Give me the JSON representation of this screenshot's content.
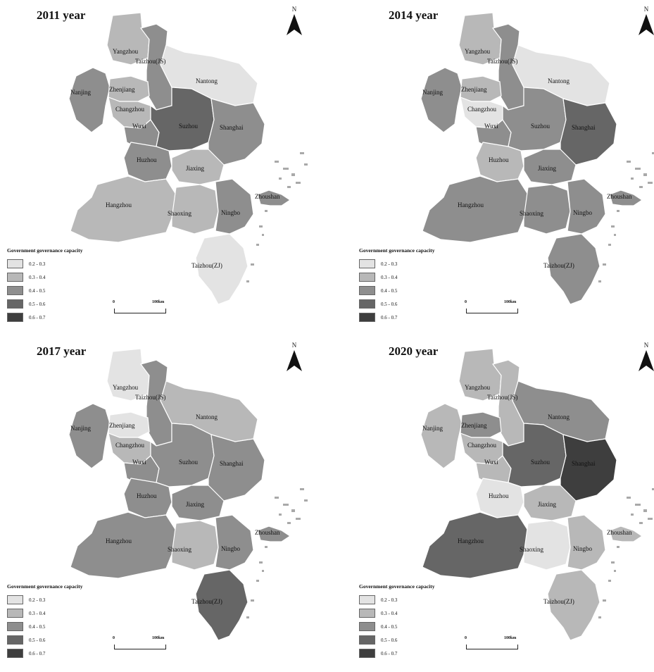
{
  "legend": {
    "title": "Government governance capacity",
    "classes": [
      {
        "label": "0.2 - 0.3",
        "color": "#e3e3e3"
      },
      {
        "label": "0.3 - 0.4",
        "color": "#b8b8b8"
      },
      {
        "label": "0.4 - 0.5",
        "color": "#8e8e8e"
      },
      {
        "label": "0.5 - 0.6",
        "color": "#666666"
      },
      {
        "label": "0.6 - 0.7",
        "color": "#3e3e3e"
      }
    ]
  },
  "north_label": "N",
  "scale": {
    "start": "0",
    "end": "100km"
  },
  "city_labels": {
    "yangzhou": "Yangzhou",
    "taizhou_js": "Taizhou(JS)",
    "nantong": "Nantong",
    "nanjing": "Nanjing",
    "zhenjiang": "Zhenjiang",
    "changzhou": "Changzhou",
    "wuxi": "Wuxi",
    "suzhou": "Suzhou",
    "shanghai": "Shanghai",
    "huzhou": "Huzhou",
    "jiaxing": "Jiaxing",
    "hangzhou": "Hangzhou",
    "shaoxing": "Shaoxing",
    "ningbo": "Ningbo",
    "zhoushan": "Zhoushan",
    "taizhou_zj": "Taizhou(ZJ)"
  },
  "maps": [
    {
      "year_title": "2011 year",
      "classes": {
        "yangzhou": "0.3 - 0.4",
        "taizhou_js": "0.4 - 0.5",
        "nantong": "0.2 - 0.3",
        "nanjing": "0.4 - 0.5",
        "zhenjiang": "0.3 - 0.4",
        "changzhou": "0.3 - 0.4",
        "wuxi": "0.4 - 0.5",
        "suzhou": "0.5 - 0.6",
        "shanghai": "0.4 - 0.5",
        "huzhou": "0.4 - 0.5",
        "jiaxing": "0.3 - 0.4",
        "hangzhou": "0.3 - 0.4",
        "shaoxing": "0.3 - 0.4",
        "ningbo": "0.4 - 0.5",
        "zhoushan": "0.4 - 0.5",
        "taizhou_zj": "0.2 - 0.3"
      }
    },
    {
      "year_title": "2014 year",
      "classes": {
        "yangzhou": "0.3 - 0.4",
        "taizhou_js": "0.4 - 0.5",
        "nantong": "0.2 - 0.3",
        "nanjing": "0.4 - 0.5",
        "zhenjiang": "0.3 - 0.4",
        "changzhou": "0.2 - 0.3",
        "wuxi": "0.4 - 0.5",
        "suzhou": "0.4 - 0.5",
        "shanghai": "0.5 - 0.6",
        "huzhou": "0.3 - 0.4",
        "jiaxing": "0.4 - 0.5",
        "hangzhou": "0.4 - 0.5",
        "shaoxing": "0.4 - 0.5",
        "ningbo": "0.4 - 0.5",
        "zhoushan": "0.4 - 0.5",
        "taizhou_zj": "0.4 - 0.5"
      }
    },
    {
      "year_title": "2017 year",
      "classes": {
        "yangzhou": "0.2 - 0.3",
        "taizhou_js": "0.4 - 0.5",
        "nantong": "0.3 - 0.4",
        "nanjing": "0.4 - 0.5",
        "zhenjiang": "0.2 - 0.3",
        "changzhou": "0.3 - 0.4",
        "wuxi": "0.4 - 0.5",
        "suzhou": "0.4 - 0.5",
        "shanghai": "0.4 - 0.5",
        "huzhou": "0.4 - 0.5",
        "jiaxing": "0.4 - 0.5",
        "hangzhou": "0.4 - 0.5",
        "shaoxing": "0.3 - 0.4",
        "ningbo": "0.4 - 0.5",
        "zhoushan": "0.4 - 0.5",
        "taizhou_zj": "0.5 - 0.6"
      }
    },
    {
      "year_title": "2020 year",
      "classes": {
        "yangzhou": "0.3 - 0.4",
        "taizhou_js": "0.3 - 0.4",
        "nantong": "0.4 - 0.5",
        "nanjing": "0.3 - 0.4",
        "zhenjiang": "0.4 - 0.5",
        "changzhou": "0.3 - 0.4",
        "wuxi": "0.3 - 0.4",
        "suzhou": "0.5 - 0.6",
        "shanghai": "0.6 - 0.7",
        "huzhou": "0.2 - 0.3",
        "jiaxing": "0.3 - 0.4",
        "hangzhou": "0.5 - 0.6",
        "shaoxing": "0.2 - 0.3",
        "ningbo": "0.3 - 0.4",
        "zhoushan": "0.3 - 0.4",
        "taizhou_zj": "0.3 - 0.4"
      }
    }
  ]
}
